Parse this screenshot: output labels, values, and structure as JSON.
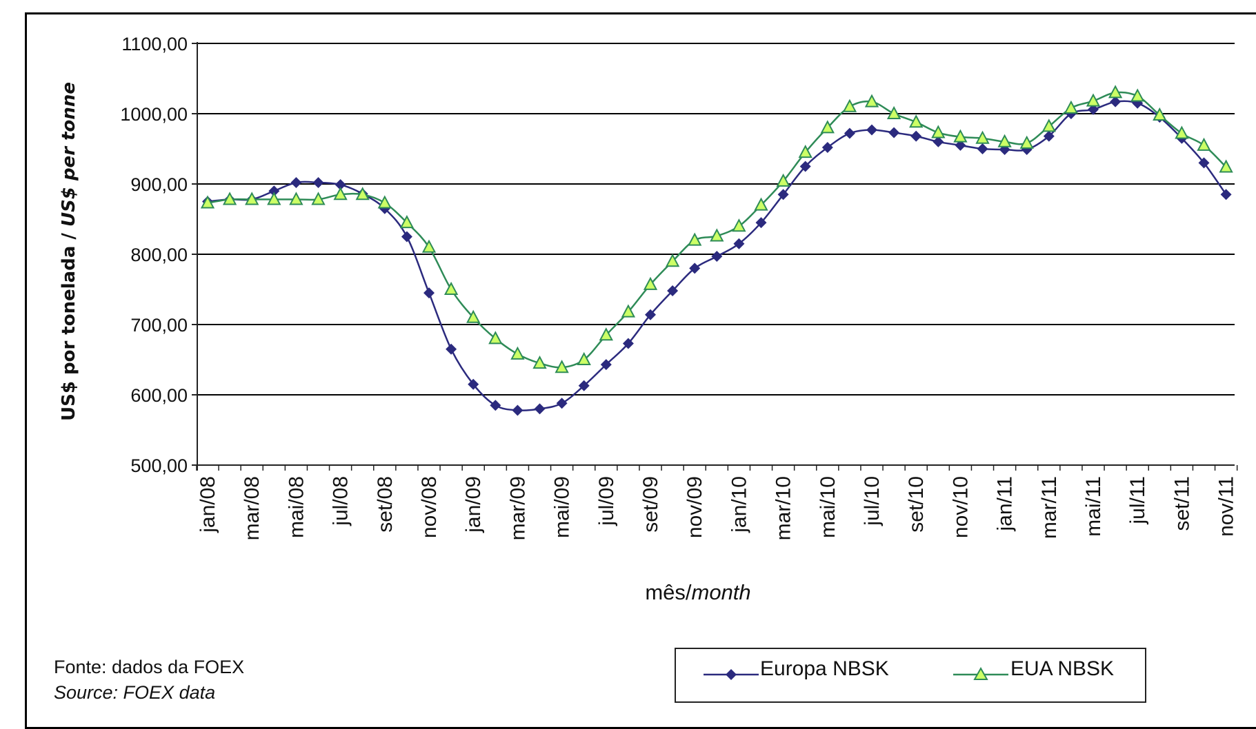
{
  "chart_data": {
    "type": "line",
    "ylabel": "US$ por tonelada / US$ per tonne",
    "ylabel_parts": {
      "pt": "US$ por tonelada / ",
      "en": "US$ per tonne"
    },
    "xlabel": "mês/month",
    "xlabel_parts": {
      "pt": "mês/",
      "en": "month"
    },
    "ylim": [
      500,
      1100
    ],
    "yticks": [
      500,
      600,
      700,
      800,
      900,
      1000,
      1100
    ],
    "ytick_labels": [
      "500,00",
      "600,00",
      "700,00",
      "800,00",
      "900,00",
      "1000,00",
      "1100,00"
    ],
    "x": [
      "jan/08",
      "fev/08",
      "mar/08",
      "abr/08",
      "mai/08",
      "jun/08",
      "jul/08",
      "ago/08",
      "set/08",
      "out/08",
      "nov/08",
      "dez/08",
      "jan/09",
      "fev/09",
      "mar/09",
      "abr/09",
      "mai/09",
      "jun/09",
      "jul/09",
      "ago/09",
      "set/09",
      "out/09",
      "nov/09",
      "dez/09",
      "jan/10",
      "fev/10",
      "mar/10",
      "abr/10",
      "mai/10",
      "jun/10",
      "jul/10",
      "ago/10",
      "set/10",
      "out/10",
      "nov/10",
      "dez/10",
      "jan/11",
      "fev/11",
      "mar/11",
      "abr/11",
      "mai/11",
      "jun/11",
      "jul/11",
      "ago/11",
      "set/11",
      "out/11",
      "nov/11"
    ],
    "xtick_labels": [
      "jan/08",
      "mar/08",
      "mai/08",
      "jul/08",
      "set/08",
      "nov/08",
      "jan/09",
      "mar/09",
      "mai/09",
      "jul/09",
      "set/09",
      "nov/09",
      "jan/10",
      "mar/10",
      "mai/10",
      "jul/10",
      "set/10",
      "nov/10",
      "jan/11",
      "mar/11",
      "mai/11",
      "jul/11",
      "set/11",
      "nov/11"
    ],
    "grid": true,
    "legend_position": "bottom-right",
    "series": [
      {
        "name": "Europa NBSK",
        "color": "#2b2a7e",
        "marker": "diamond",
        "values": [
          875,
          878,
          878,
          890,
          902,
          902,
          899,
          886,
          865,
          825,
          745,
          665,
          615,
          585,
          578,
          580,
          588,
          613,
          643,
          673,
          714,
          748,
          780,
          797,
          815,
          845,
          885,
          925,
          952,
          972,
          977,
          973,
          968,
          960,
          955,
          950,
          949,
          949,
          968,
          1000,
          1006,
          1017,
          1015,
          995,
          965,
          930,
          885
        ]
      },
      {
        "name": "EUA NBSK",
        "color": "#2e8b57",
        "marker_fill": "#ccff66",
        "marker": "triangle",
        "values": [
          873,
          878,
          878,
          878,
          878,
          878,
          885,
          885,
          873,
          845,
          810,
          750,
          710,
          680,
          658,
          645,
          639,
          650,
          685,
          718,
          757,
          790,
          820,
          826,
          840,
          870,
          904,
          945,
          980,
          1010,
          1017,
          1000,
          988,
          973,
          967,
          965,
          960,
          958,
          982,
          1008,
          1018,
          1030,
          1025,
          998,
          972,
          955,
          924
        ]
      }
    ]
  },
  "source": {
    "pt": "Fonte: dados da FOEX",
    "en": "Source: FOEX data"
  },
  "legend": {
    "items": [
      {
        "label": "Europa NBSK"
      },
      {
        "label": "EUA NBSK"
      }
    ]
  }
}
